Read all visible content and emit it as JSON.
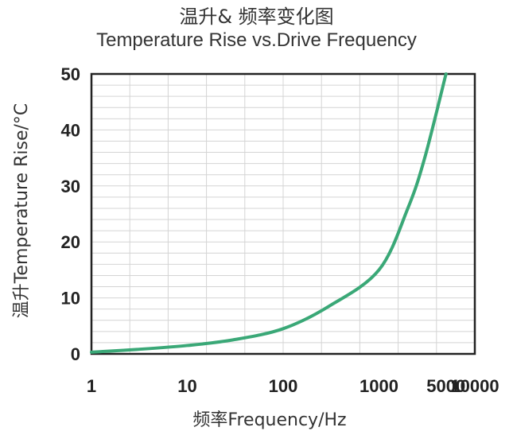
{
  "chart_data": {
    "type": "line",
    "title": "温升& 频率变化图",
    "subtitle": "Temperature Rise vs.Drive Frequency",
    "xlabel": "频率Frequency/Hz",
    "ylabel": "温升Temperature Rise/°C",
    "x_scale": "log",
    "x_ticks": [
      "1",
      "10",
      "100",
      "1000",
      "5000",
      "10000"
    ],
    "y_ticks": [
      "0",
      "10",
      "20",
      "30",
      "40",
      "50"
    ],
    "ylim": [
      0,
      50
    ],
    "grid": true,
    "series": [
      {
        "color": "#3aa877",
        "points": [
          {
            "x": 1,
            "y": 0.3
          },
          {
            "x": 3,
            "y": 0.8
          },
          {
            "x": 10,
            "y": 1.5
          },
          {
            "x": 30,
            "y": 2.5
          },
          {
            "x": 100,
            "y": 4.5
          },
          {
            "x": 300,
            "y": 8.5
          },
          {
            "x": 1000,
            "y": 15
          },
          {
            "x": 2000,
            "y": 26
          },
          {
            "x": 3000,
            "y": 35
          },
          {
            "x": 5000,
            "y": 50
          }
        ]
      }
    ]
  }
}
